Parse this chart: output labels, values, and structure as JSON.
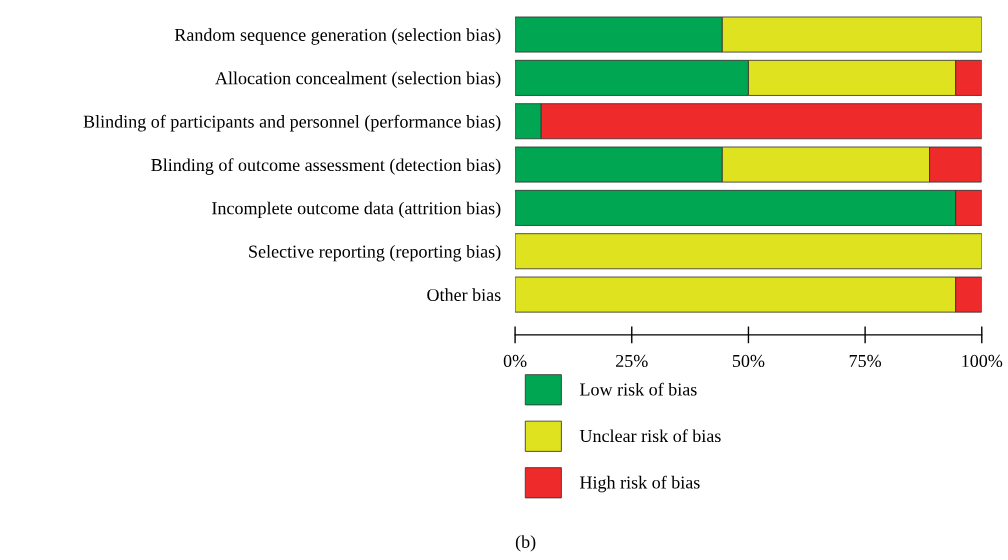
{
  "chart_data": {
    "type": "bar",
    "orientation": "horizontal",
    "stacked": true,
    "categories": [
      "Random sequence generation (selection bias)",
      "Allocation concealment (selection bias)",
      "Blinding of participants and personnel (performance bias)",
      "Blinding of outcome assessment (detection bias)",
      "Incomplete outcome data (attrition bias)",
      "Selective reporting (reporting bias)",
      "Other bias"
    ],
    "series": [
      {
        "name": "Low risk of bias",
        "color": "#00a651",
        "values": [
          44.4,
          50.0,
          5.6,
          44.4,
          94.4,
          null,
          null
        ]
      },
      {
        "name": "Unclear risk of bias",
        "color": "#dfe21e",
        "values": [
          55.6,
          44.4,
          null,
          44.4,
          null,
          100,
          94.4
        ]
      },
      {
        "name": "High risk of bias",
        "color": "#ee2a2a",
        "values": [
          null,
          5.6,
          94.4,
          11.1,
          5.6,
          null,
          5.6
        ]
      }
    ],
    "xlim": [
      0,
      100
    ],
    "xticks": [
      {
        "value": 0,
        "label": "0%"
      },
      {
        "value": 25,
        "label": "25%"
      },
      {
        "value": 50,
        "label": "50%"
      },
      {
        "value": 75,
        "label": "75%"
      },
      {
        "value": 100,
        "label": "100%"
      }
    ],
    "legend": "bottom",
    "grid": false,
    "annotations": [
      "(b)"
    ]
  }
}
